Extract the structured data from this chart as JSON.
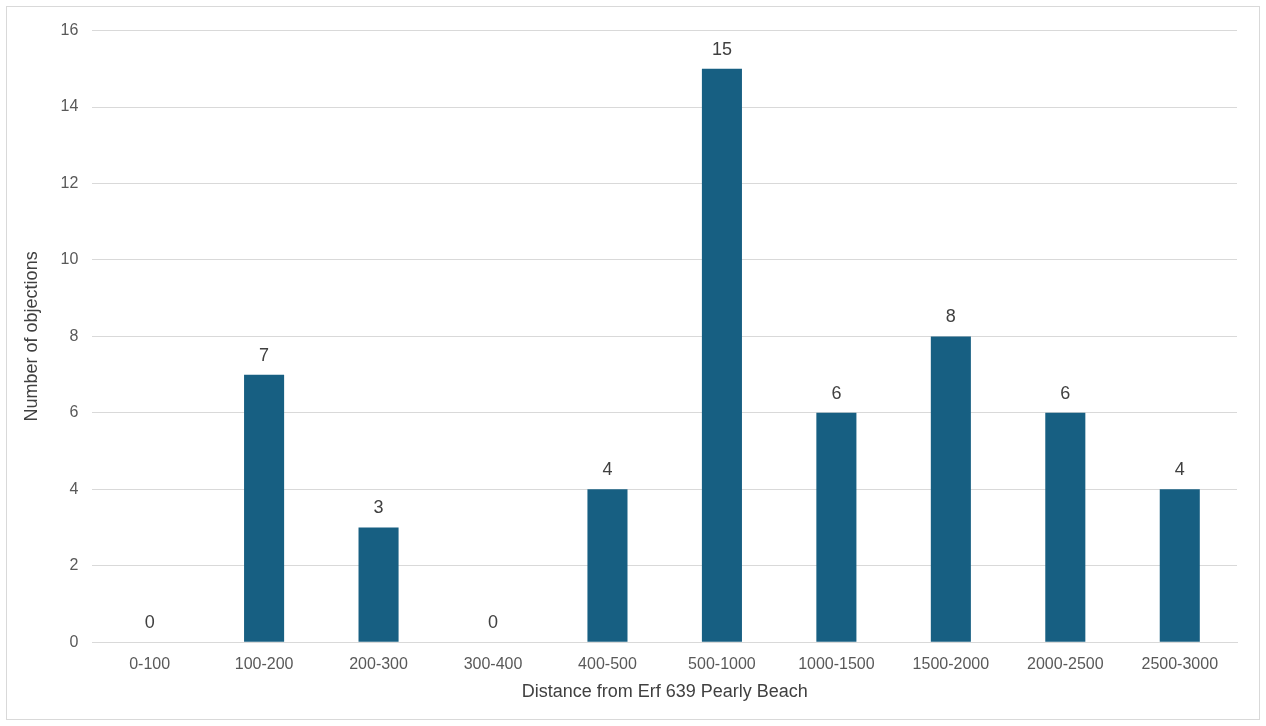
{
  "chart_data": {
    "type": "bar",
    "xlabel": "Distance from Erf 639 Pearly Beach",
    "ylabel": "Number of objections",
    "categories": [
      "0-100",
      "100-200",
      "200-300",
      "300-400",
      "400-500",
      "500-1000",
      "1000-1500",
      "1500-2000",
      "2000-2500",
      "2500-3000"
    ],
    "values": [
      0,
      7,
      3,
      0,
      4,
      15,
      6,
      8,
      6,
      4
    ],
    "color": "#175f82",
    "ylim": [
      0,
      16
    ],
    "yticks": [
      0,
      2,
      4,
      6,
      8,
      10,
      12,
      14,
      16
    ],
    "grid": "y",
    "data_labels": true
  }
}
